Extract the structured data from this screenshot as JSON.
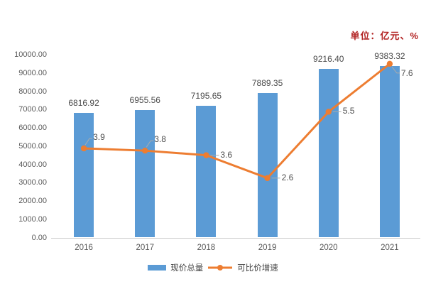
{
  "header": {
    "unit_label": "单位：亿元、%"
  },
  "colors": {
    "bar": "#5B9BD5",
    "line": "#ED7D31",
    "tick_text": "#595959",
    "bar_label_text": "#4a4a4a",
    "line_label_text": "#505050",
    "unit_text": "#B22222",
    "axis_line": "#C9C9C9",
    "leader_line": "#ABABAB",
    "legend_text": "#404040",
    "background": "#FFFFFF"
  },
  "legend": {
    "items": [
      {
        "label": "现价总量",
        "marker": "bar-swatch"
      },
      {
        "label": "可比价增速",
        "marker": "line-circle-marker"
      }
    ],
    "position": "bottom"
  },
  "chart_data": {
    "type": "bar",
    "subtype": "bar+line combo, secondary axis hidden",
    "title": "",
    "xlabel": "",
    "ylabel": "",
    "unit": "单位：亿元、%",
    "categories": [
      "2016",
      "2017",
      "2018",
      "2019",
      "2020",
      "2021"
    ],
    "series": [
      {
        "name": "现价总量",
        "type": "bar",
        "axis": "primary",
        "values": [
          6816.92,
          6955.56,
          7195.65,
          7889.35,
          9216.4,
          9383.32
        ],
        "labels": [
          "6816.92",
          "6955.56",
          "7195.65",
          "7889.35",
          "9216.40",
          "9383.32"
        ]
      },
      {
        "name": "可比价增速",
        "type": "line",
        "axis": "secondary",
        "values": [
          3.9,
          3.8,
          3.6,
          2.6,
          5.5,
          7.6
        ],
        "labels": [
          "3.9",
          "3.8",
          "3.6",
          "2.6",
          "5.5",
          "7.6"
        ]
      }
    ],
    "primary_axis": {
      "min": 0,
      "max": 10000,
      "step": 1000,
      "tick_labels": [
        "0.00",
        "1000.00",
        "2000.00",
        "3000.00",
        "4000.00",
        "5000.00",
        "6000.00",
        "7000.00",
        "8000.00",
        "9000.00",
        "10000.00"
      ]
    },
    "secondary_axis": {
      "min": 0,
      "max": 8,
      "visible": false
    },
    "grid": false,
    "legend_position": "bottom"
  }
}
